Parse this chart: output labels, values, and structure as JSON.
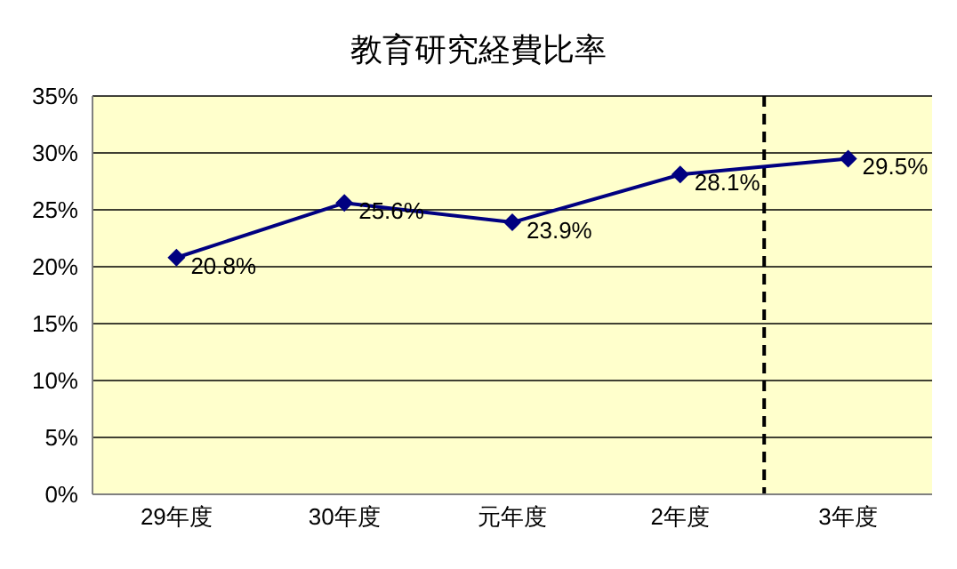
{
  "chart_data": {
    "type": "line",
    "title": "教育研究経費比率",
    "categories": [
      "29年度",
      "30年度",
      "元年度",
      "2年度",
      "3年度"
    ],
    "series": [
      {
        "color": "#000080",
        "values": [
          20.8,
          25.6,
          23.9,
          28.1,
          29.5
        ]
      }
    ],
    "ylim": [
      0,
      35
    ],
    "yticks": [
      {
        "value": 0,
        "label": "0%"
      },
      {
        "value": 5,
        "label": "5%"
      },
      {
        "value": 10,
        "label": "10%"
      },
      {
        "value": 15,
        "label": "15%"
      },
      {
        "value": 20,
        "label": "20%"
      },
      {
        "value": 25,
        "label": "25%"
      },
      {
        "value": 30,
        "label": "30%"
      },
      {
        "value": 35,
        "label": "35%"
      }
    ],
    "value_labels": [
      "20.8%",
      "25.6%",
      "23.9%",
      "28.1%",
      "29.5%"
    ],
    "grid": "y",
    "marker": "diamond",
    "line_style": "solid"
  }
}
